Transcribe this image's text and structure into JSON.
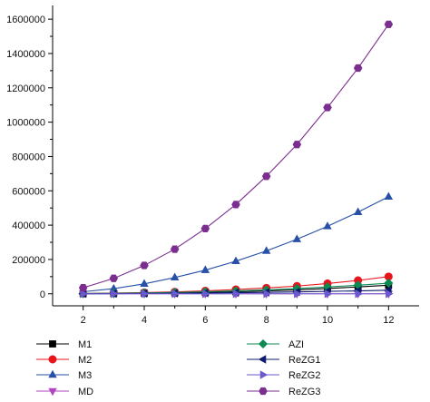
{
  "chart_data": {
    "type": "line",
    "title": "",
    "xlabel": "",
    "ylabel": "",
    "x": [
      2,
      3,
      4,
      5,
      6,
      7,
      8,
      9,
      10,
      11,
      12
    ],
    "xlim": [
      1,
      13
    ],
    "ylim": [
      -70000,
      1680000
    ],
    "xticks": [
      2,
      4,
      6,
      8,
      10,
      12
    ],
    "yticks": [
      0,
      200000,
      400000,
      600000,
      800000,
      1000000,
      1200000,
      1400000,
      1600000
    ],
    "grid": false,
    "legend_position": "bottom",
    "series": [
      {
        "name": "M1",
        "color": "#000000",
        "marker": "square",
        "values": [
          1000,
          2000,
          3500,
          5500,
          8000,
          12000,
          17000,
          23000,
          31000,
          40000,
          50000
        ]
      },
      {
        "name": "M2",
        "color": "#e8141c",
        "marker": "circle",
        "values": [
          2000,
          4000,
          7000,
          11000,
          17000,
          25000,
          34000,
          45000,
          60000,
          78000,
          100000
        ]
      },
      {
        "name": "M3",
        "color": "#2850a8",
        "marker": "triangle-up",
        "values": [
          12000,
          30000,
          58000,
          95000,
          138000,
          190000,
          250000,
          318000,
          393000,
          476000,
          566000
        ]
      },
      {
        "name": "MD",
        "color": "#b146c2",
        "marker": "triangle-down",
        "values": [
          0,
          0,
          0,
          0,
          0,
          0,
          0,
          0,
          0,
          0,
          0
        ]
      },
      {
        "name": "AZI",
        "color": "#0b8a52",
        "marker": "diamond",
        "values": [
          1500,
          3000,
          5000,
          8000,
          12000,
          17000,
          23000,
          31000,
          40000,
          50000,
          62000
        ]
      },
      {
        "name": "ReZG1",
        "color": "#0d1b6e",
        "marker": "triangle-left",
        "values": [
          500,
          1000,
          2000,
          3000,
          4500,
          6500,
          8500,
          11000,
          14000,
          17000,
          21000
        ]
      },
      {
        "name": "ReZG2",
        "color": "#6a5acd",
        "marker": "triangle-right",
        "values": [
          0,
          0,
          0,
          0,
          0,
          0,
          0,
          0,
          0,
          0,
          0
        ]
      },
      {
        "name": "ReZG3",
        "color": "#7b2d90",
        "marker": "hexagon",
        "values": [
          35000,
          90000,
          165000,
          260000,
          380000,
          520000,
          685000,
          870000,
          1085000,
          1315000,
          1570000
        ]
      }
    ]
  }
}
